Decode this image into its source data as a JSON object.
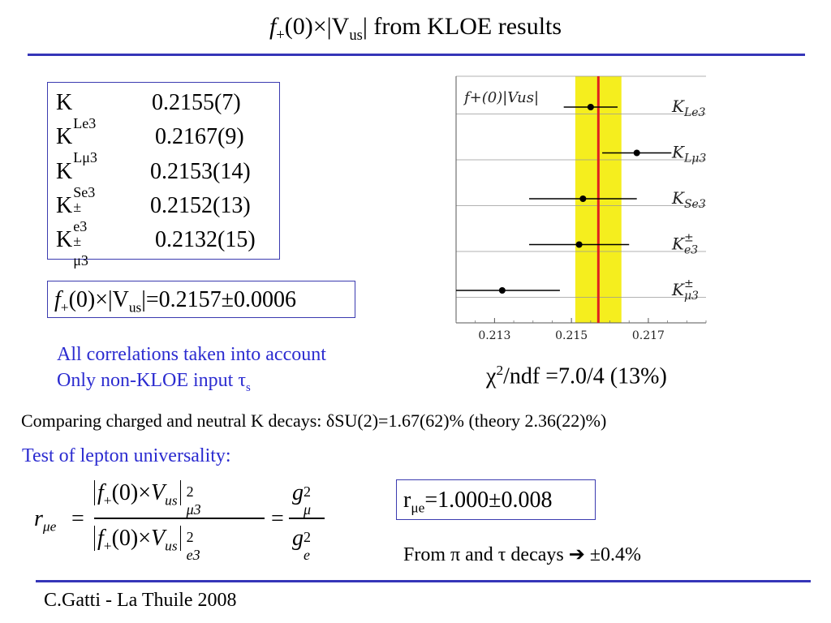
{
  "slide": {
    "title_f": "f",
    "title_sub_plus": "+",
    "title_mid": "(0)×|V",
    "title_sub_us": "us",
    "title_end": "| from KLOE results",
    "footer": "C.Gatti - La Thuile 2008"
  },
  "results": [
    {
      "K": "K",
      "sup": "",
      "sub": "Le3",
      "value": "0.2155(7)"
    },
    {
      "K": "K",
      "sup": "",
      "sub": "Lμ3",
      "value": "0.2167(9)"
    },
    {
      "K": "K",
      "sup": "",
      "sub": "Se3",
      "value": "0.2153(14)"
    },
    {
      "K": "K",
      "sup": "±",
      "sub": "e3",
      "value": "0.2152(13)"
    },
    {
      "K": "K",
      "sup": "±",
      "sub": "μ3",
      "value": "0.2132(15)"
    }
  ],
  "average": {
    "f": "f",
    "plus": "+",
    "mid": "(0)×|V",
    "us": "us",
    "end": "|=0.2157±0.0006"
  },
  "notes": {
    "line1": "All correlations taken into account",
    "line2_pre": "Only non-KLOE input τ",
    "line2_sub": "s"
  },
  "chi2": {
    "chi": "χ",
    "sup": "2",
    "rest": "/ndf =7.0/4 (13%)"
  },
  "comparison": "Comparing charged and neutral K decays: δSU(2)=1.67(62)%  (theory 2.36(22)%)",
  "lepton": {
    "heading": "Test of lepton universality:",
    "r": "r",
    "r_sub": "μe",
    "num_f": "f",
    "plus": "+",
    "num_mid": "(0)×",
    "V": "V",
    "us": "us",
    "sq": "2",
    "num_sub": "μ3",
    "den_sub": "e3",
    "g": "g",
    "g_mu": "μ",
    "g_e": "e",
    "eq": "=",
    "result_r": "r",
    "result_sub": "μe",
    "result_val": "=1.000±0.008",
    "from_pre": "From π and τ decays ",
    "arrow": "➔",
    "from_val": "  ±0.4%"
  },
  "chart_data": {
    "type": "scatter",
    "title": "f+(0)|Vus|",
    "categories": [
      "K_Le3",
      "K_Lμ3",
      "K_Se3",
      "K_e3^±",
      "K_μ3^±"
    ],
    "category_labels": [
      {
        "K": "K",
        "sub": "Le3",
        "sup": ""
      },
      {
        "K": "K",
        "sub": "Lμ3",
        "sup": ""
      },
      {
        "K": "K",
        "sub": "Se3",
        "sup": ""
      },
      {
        "K": "K",
        "sub": "e3",
        "sup": "±"
      },
      {
        "K": "K",
        "sub": "μ3",
        "sup": "±"
      }
    ],
    "values": [
      0.2155,
      0.2167,
      0.2153,
      0.2152,
      0.2132
    ],
    "errors": [
      0.0007,
      0.0009,
      0.0014,
      0.0013,
      0.0015
    ],
    "average": 0.2157,
    "average_error": 0.0006,
    "xlim": [
      0.212,
      0.2185
    ],
    "xticks": [
      0.213,
      0.215,
      0.217
    ],
    "xtick_labels": [
      "0.213",
      "0.215",
      "0.217"
    ],
    "grid": "horizontal lines between categories",
    "colors": {
      "band": "#f5ee1e",
      "line": "#e02020",
      "points": "#000000"
    }
  }
}
